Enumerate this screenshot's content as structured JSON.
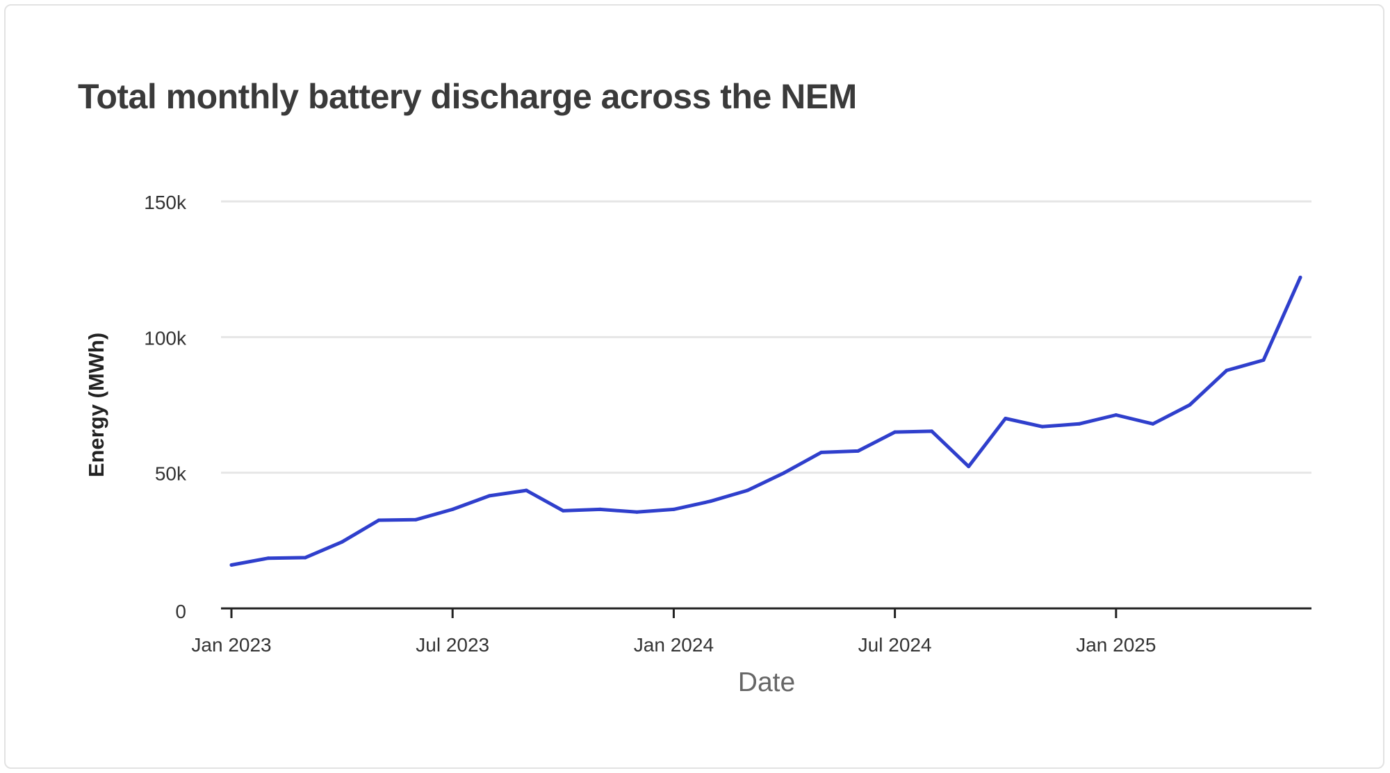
{
  "chart_data": {
    "type": "line",
    "title": "Total monthly battery discharge across the NEM",
    "xlabel": "Date",
    "ylabel": "Energy (MWh)",
    "ylim": [
      0,
      150000
    ],
    "yticks": [
      {
        "value": 0,
        "label": "0"
      },
      {
        "value": 50000,
        "label": "50k"
      },
      {
        "value": 100000,
        "label": "100k"
      },
      {
        "value": 150000,
        "label": "150k"
      }
    ],
    "xlim": [
      "2023-01",
      "2025-06"
    ],
    "xticks": [
      {
        "value": "2023-01",
        "label": "Jan 2023"
      },
      {
        "value": "2023-07",
        "label": "Jul 2023"
      },
      {
        "value": "2024-01",
        "label": "Jan 2024"
      },
      {
        "value": "2024-07",
        "label": "Jul 2024"
      },
      {
        "value": "2025-01",
        "label": "Jan 2025"
      }
    ],
    "grid": "horizontal",
    "legend": "none",
    "colors": {
      "line": "#2f3fcc",
      "grid": "#e6e6e6",
      "axis": "#222222"
    },
    "series": [
      {
        "x": [
          "2023-01",
          "2023-02",
          "2023-03",
          "2023-04",
          "2023-05",
          "2023-06",
          "2023-07",
          "2023-08",
          "2023-09",
          "2023-10",
          "2023-11",
          "2023-12",
          "2024-01",
          "2024-02",
          "2024-03",
          "2024-04",
          "2024-05",
          "2024-06",
          "2024-07",
          "2024-08",
          "2024-09",
          "2024-10",
          "2024-11",
          "2024-12",
          "2025-01",
          "2025-02",
          "2025-03",
          "2025-04",
          "2025-05",
          "2025-06"
        ],
        "values": [
          16000,
          18500,
          18700,
          24500,
          32500,
          32700,
          36500,
          41500,
          43500,
          36000,
          36500,
          35500,
          36500,
          39500,
          43500,
          50000,
          57500,
          58000,
          65000,
          65300,
          52300,
          70000,
          67000,
          68000,
          71300,
          68000,
          75000,
          87700,
          91500,
          122000
        ]
      }
    ]
  }
}
